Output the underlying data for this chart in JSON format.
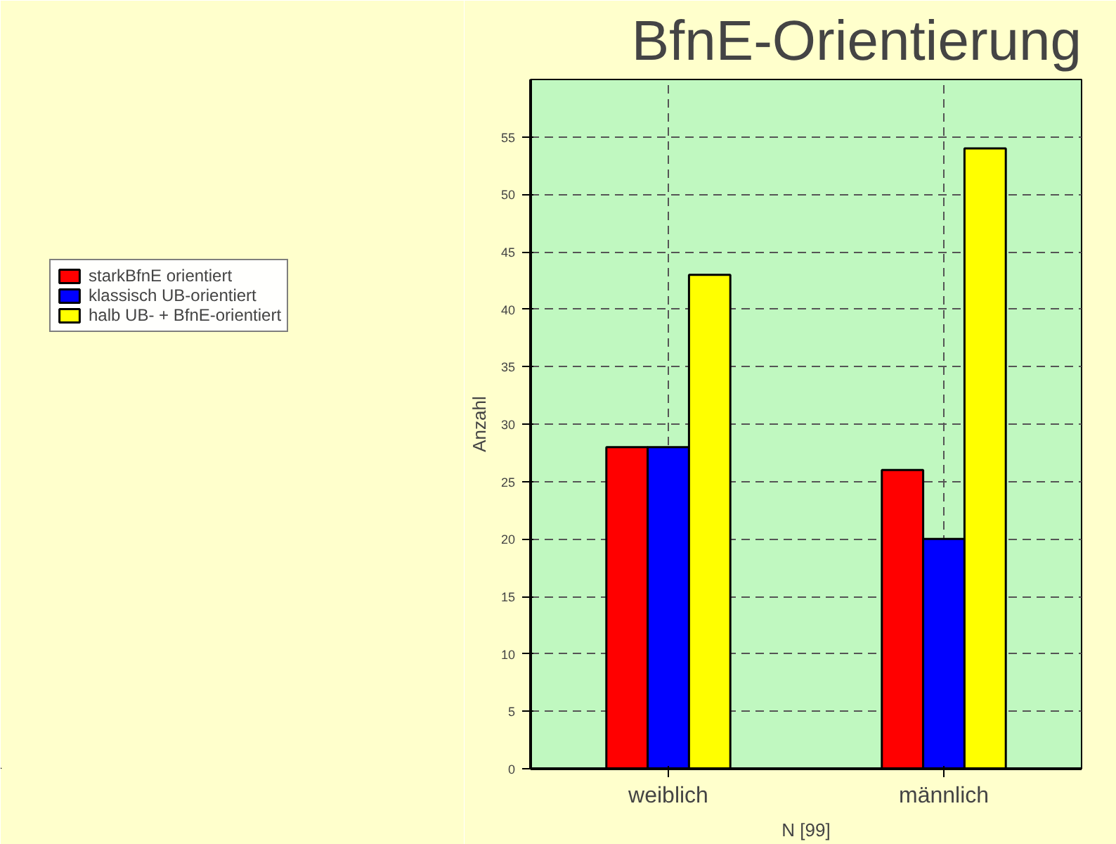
{
  "chart_data": {
    "type": "bar",
    "title": "BfnE-Orientierung",
    "xlabel": "N [99]",
    "ylabel": "Anzahl",
    "categories": [
      "weiblich",
      "männlich"
    ],
    "series": [
      {
        "name": "starkBfnE orientiert",
        "color": "#ff0000",
        "values": [
          28,
          26
        ]
      },
      {
        "name": "klassisch UB-orientiert",
        "color": "#0000ff",
        "values": [
          28,
          20
        ]
      },
      {
        "name": "halb UB- + BfnE-orientiert",
        "color": "#ffff00",
        "values": [
          43,
          54
        ]
      }
    ],
    "ylim": [
      0,
      60
    ],
    "yticks": [
      0,
      5,
      10,
      15,
      20,
      25,
      30,
      35,
      40,
      45,
      50,
      55
    ],
    "grid": true,
    "legend": "left"
  }
}
